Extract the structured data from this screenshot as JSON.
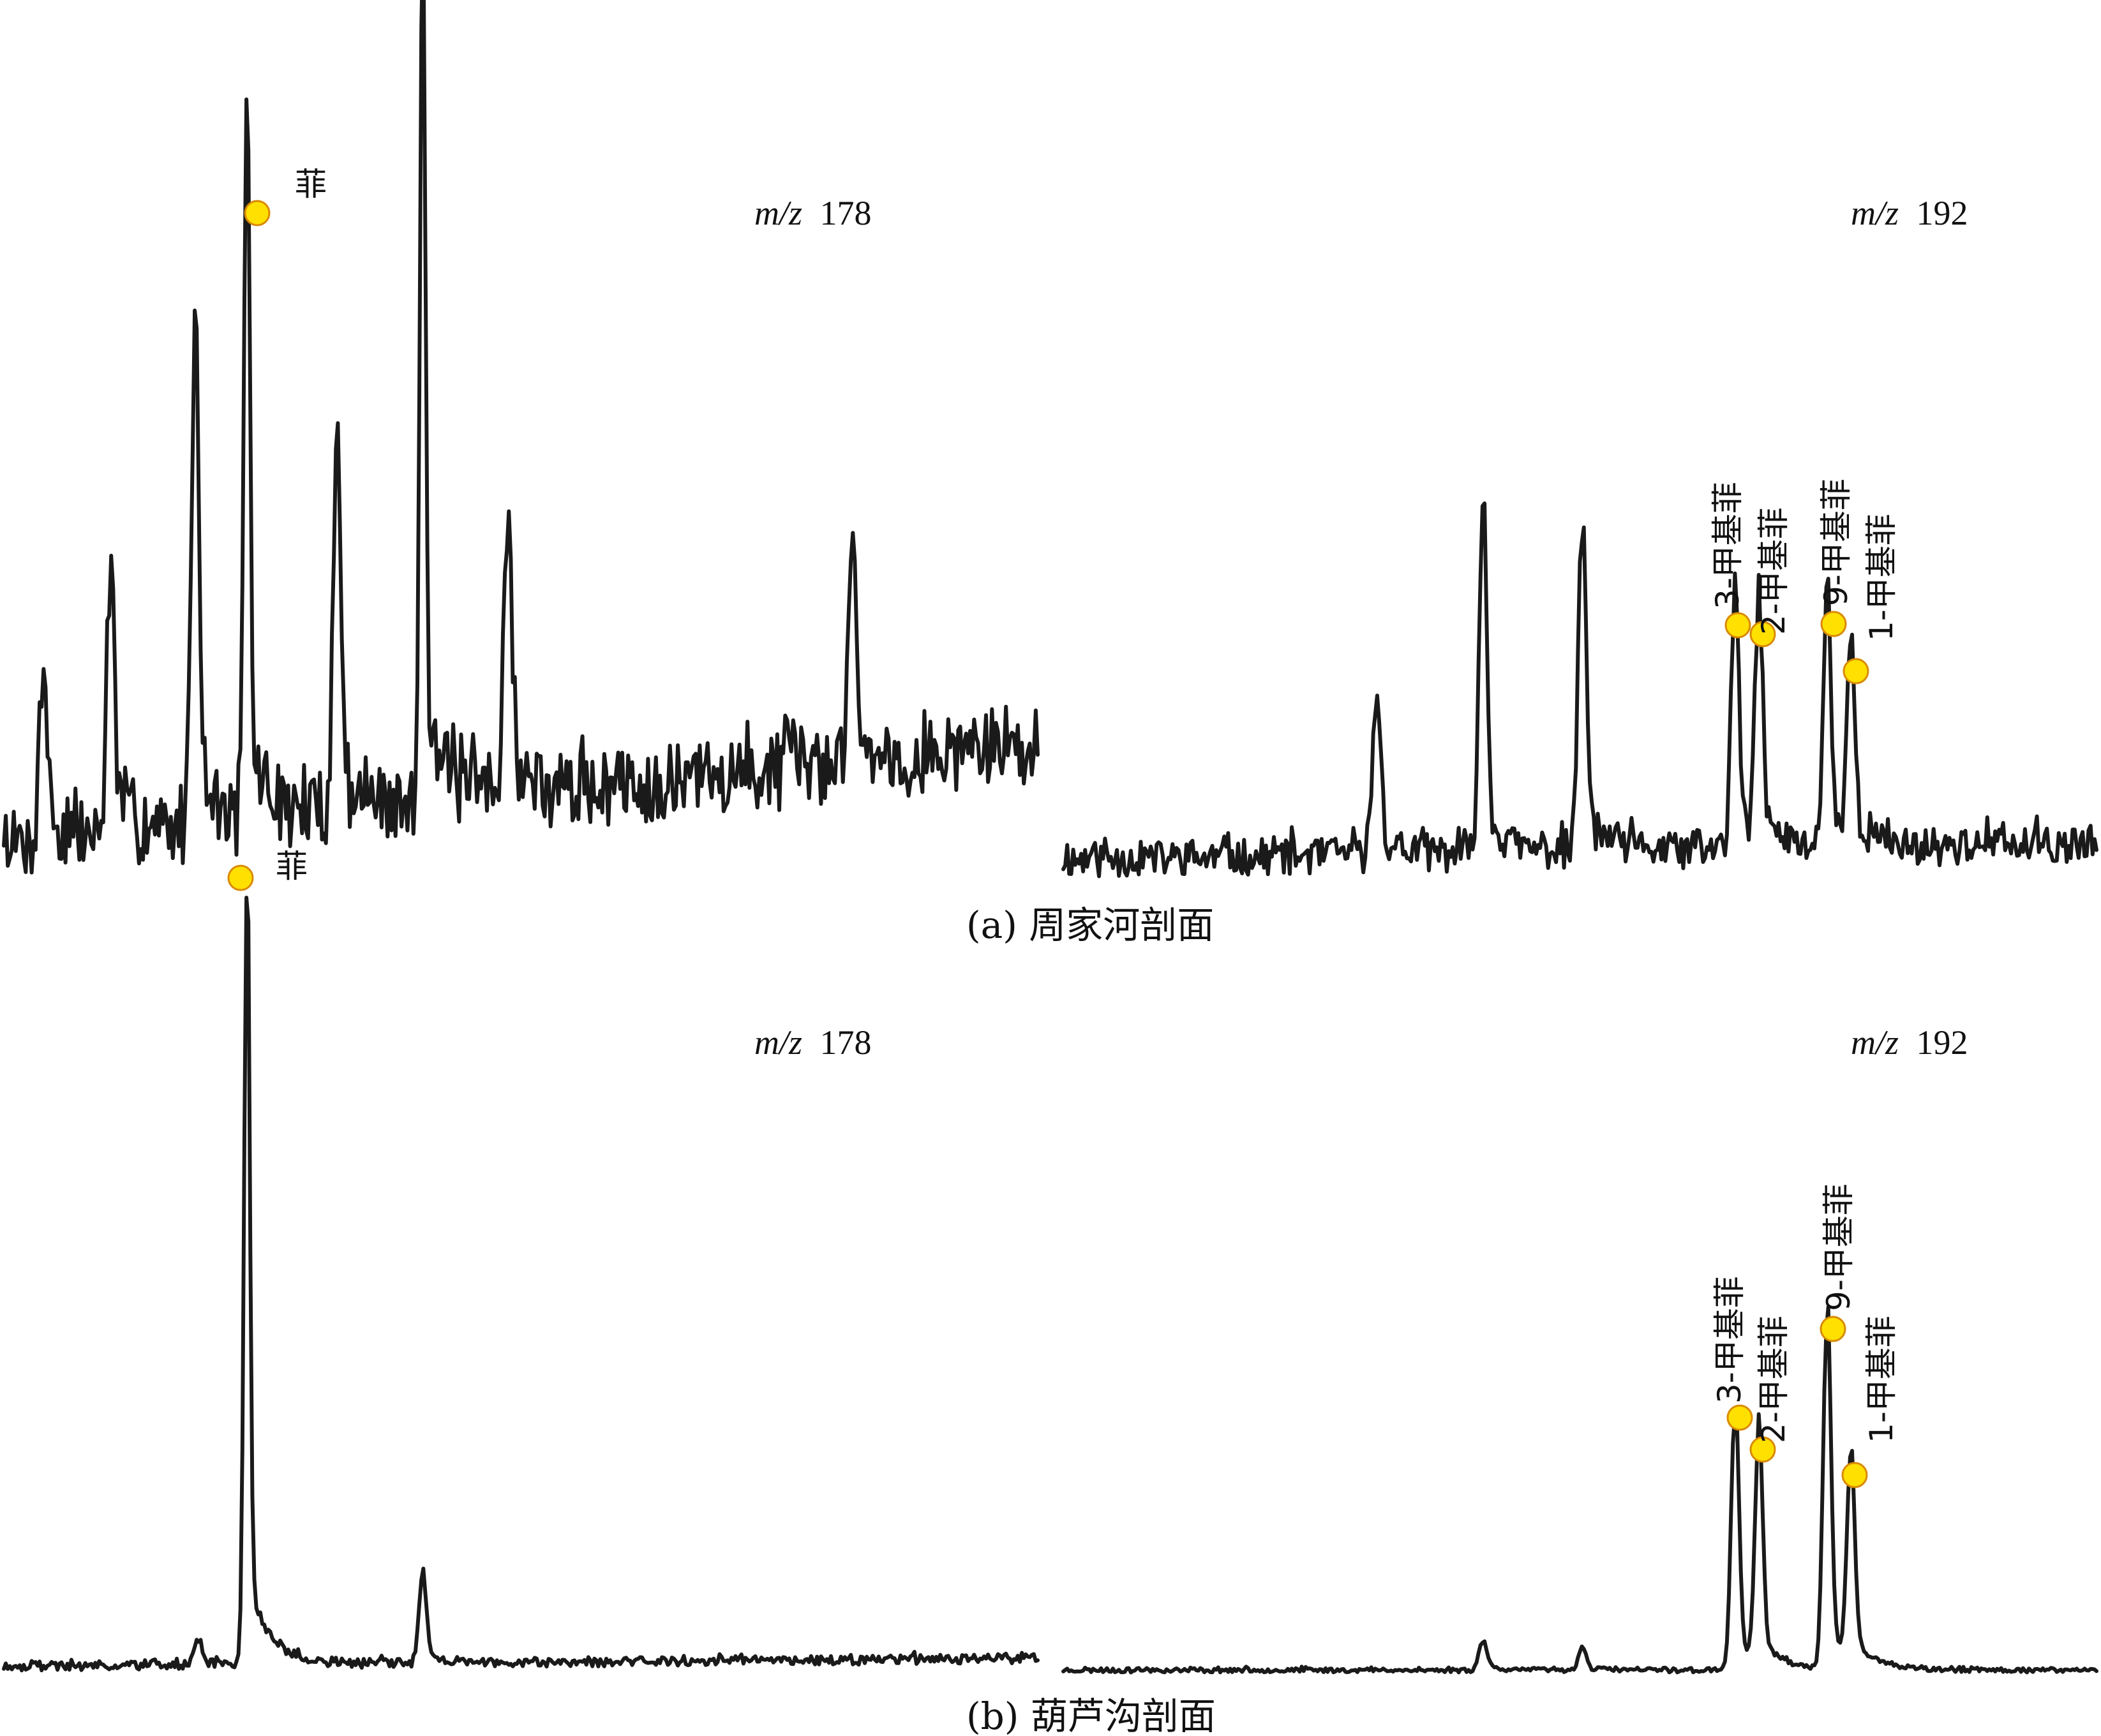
{
  "chart_data": [
    {
      "type": "line",
      "panel": "a",
      "ion_label": {
        "prefix": "m/z",
        "value": "178"
      },
      "peaks": [
        {
          "name": "菲",
          "t": 0.235,
          "intensity": 0.84,
          "labelled": true
        },
        {
          "name": "",
          "t": 0.185,
          "intensity": 0.58
        },
        {
          "name": "",
          "t": 0.405,
          "intensity": 1.0
        },
        {
          "name": "",
          "t": 0.322,
          "intensity": 0.42
        },
        {
          "name": "",
          "t": 0.103,
          "intensity": 0.3
        },
        {
          "name": "",
          "t": 0.487,
          "intensity": 0.34
        },
        {
          "name": "",
          "t": 0.038,
          "intensity": 0.2
        },
        {
          "name": "",
          "t": 0.82,
          "intensity": 0.26
        }
      ]
    },
    {
      "type": "line",
      "panel": "a",
      "ion_label": {
        "prefix": "m/z",
        "value": "192"
      },
      "peaks": [
        {
          "name": "3-甲基菲",
          "t": 0.65,
          "intensity": 0.35,
          "labelled": true
        },
        {
          "name": "2-甲基菲",
          "t": 0.673,
          "intensity": 0.32,
          "labelled": true
        },
        {
          "name": "9-甲基菲",
          "t": 0.739,
          "intensity": 0.35,
          "labelled": true
        },
        {
          "name": "1-甲基菲",
          "t": 0.762,
          "intensity": 0.27,
          "labelled": true
        },
        {
          "name": "",
          "t": 0.406,
          "intensity": 0.47
        },
        {
          "name": "",
          "t": 0.502,
          "intensity": 0.45
        },
        {
          "name": "",
          "t": 0.303,
          "intensity": 0.22
        }
      ]
    },
    {
      "type": "line",
      "panel": "b",
      "ion_label": {
        "prefix": "m/z",
        "value": "178"
      },
      "peaks": [
        {
          "name": "菲",
          "t": 0.235,
          "intensity": 1.0,
          "labelled": true
        },
        {
          "name": "",
          "t": 0.405,
          "intensity": 0.11
        },
        {
          "name": "",
          "t": 0.187,
          "intensity": 0.03
        }
      ]
    },
    {
      "type": "line",
      "panel": "b",
      "ion_label": {
        "prefix": "m/z",
        "value": "192"
      },
      "peaks": [
        {
          "name": "3-甲基菲",
          "t": 0.65,
          "intensity": 0.35,
          "labelled": true
        },
        {
          "name": "2-甲基菲",
          "t": 0.673,
          "intensity": 0.3,
          "labelled": true
        },
        {
          "name": "9-甲基菲",
          "t": 0.739,
          "intensity": 0.47,
          "labelled": true
        },
        {
          "name": "1-甲基菲",
          "t": 0.762,
          "intensity": 0.27,
          "labelled": true
        },
        {
          "name": "",
          "t": 0.406,
          "intensity": 0.04
        },
        {
          "name": "",
          "t": 0.502,
          "intensity": 0.03
        }
      ]
    }
  ],
  "captions": {
    "a": "(a) 周家河剖面",
    "b": "(b) 葫芦沟剖面"
  },
  "colors": {
    "trace": "#1a1a1a",
    "marker_fill": "#ffe000",
    "marker_stroke": "#d98a00"
  }
}
